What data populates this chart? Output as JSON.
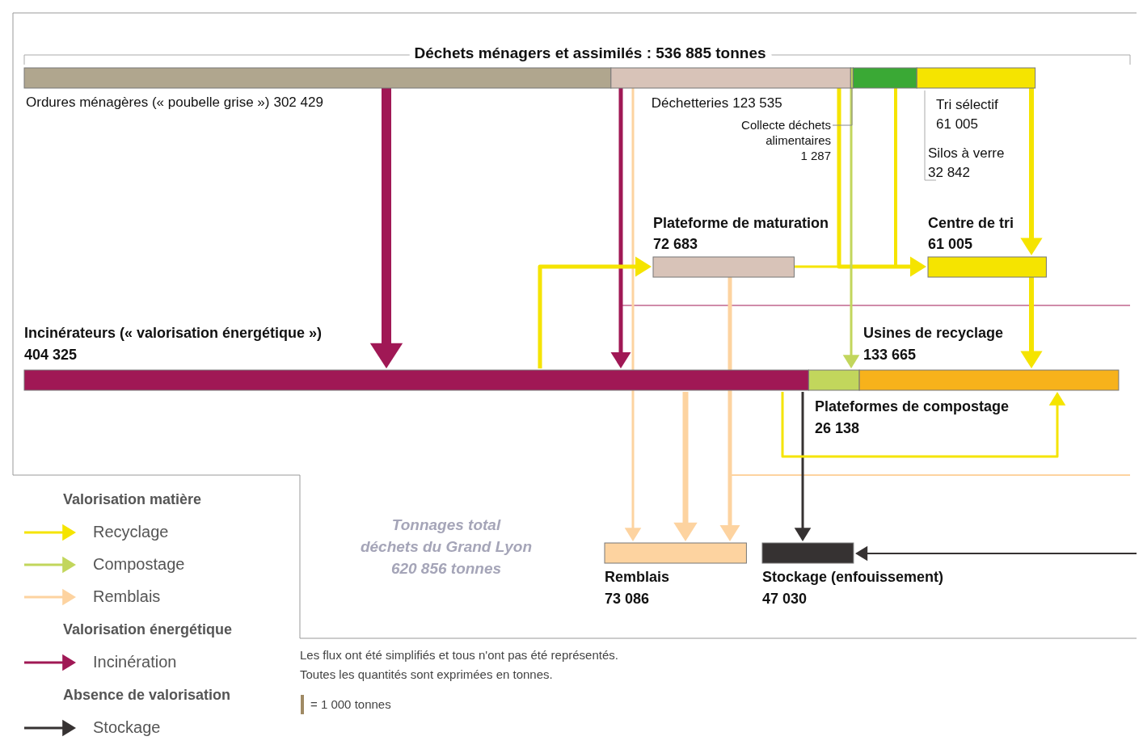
{
  "chart_data": {
    "type": "other",
    "title": "Déchets ménagers et assimilés : 536 885 tonnes",
    "categories": [
      "Ordures ménagères (« poubelle grise »)",
      "Déchetteries",
      "Collecte déchets alimentaires",
      "Tri sélectif",
      "Silos à verre",
      "Plateforme de maturation",
      "Centre de tri",
      "Incinérateurs (« valorisation énergétique »)",
      "Usines de recyclage",
      "Plateformes de compostage",
      "Remblais",
      "Stockage (enfouissement)"
    ],
    "values": [
      302429,
      123535,
      1287,
      61005,
      32842,
      72683,
      61005,
      404325,
      133665,
      26138,
      73086,
      47030
    ],
    "value_labels": [
      "302 429",
      "123 535",
      "1 287",
      "61 005",
      "32 842",
      "72 683",
      "61 005",
      "404 325",
      "133 665",
      "26 138",
      "73 086",
      "47 030"
    ],
    "colors": [
      "#b0a68e",
      "#d8c3b8",
      "#c2d65c",
      "#f5e400",
      "#3aa935",
      "#d8c3b8",
      "#f5e400",
      "#a01855",
      "#f7b21b",
      "#c2d65c",
      "#fdd3a0",
      "#363232"
    ],
    "series": [
      {
        "name": "Recyclage",
        "color": "#f5e400",
        "values": [
          null,
          null,
          null,
          null,
          null,
          null,
          null,
          null,
          null,
          null,
          null,
          null
        ]
      },
      {
        "name": "Compostage",
        "color": "#c2d65c",
        "values": [
          null,
          null,
          null,
          null,
          null,
          null,
          null,
          null,
          null,
          null,
          null,
          null
        ]
      },
      {
        "name": "Remblais",
        "color": "#fdd3a0",
        "values": [
          null,
          null,
          null,
          null,
          null,
          null,
          null,
          null,
          null,
          null,
          null,
          null
        ]
      },
      {
        "name": "Incinération",
        "color": "#a01855",
        "values": [
          null,
          null,
          null,
          null,
          null,
          null,
          null,
          null,
          null,
          null,
          null,
          null
        ]
      },
      {
        "name": "Stockage",
        "color": "#363232",
        "values": [
          null,
          null,
          null,
          null,
          null,
          null,
          null,
          null,
          null,
          null,
          null,
          null
        ]
      }
    ],
    "legend": "bottom left",
    "annotations": [
      "Valorisation matière",
      "Valorisation énergétique",
      "Absence de valorisation",
      "Tonnages total\ndéchets du Grand Lyon\n620 856 tonnes",
      "Les flux ont été simplifiés et tous n'ont pas été représentés.",
      "Toutes les quantités sont exprimées en tonnes.",
      "= 1 000 tonnes"
    ]
  }
}
